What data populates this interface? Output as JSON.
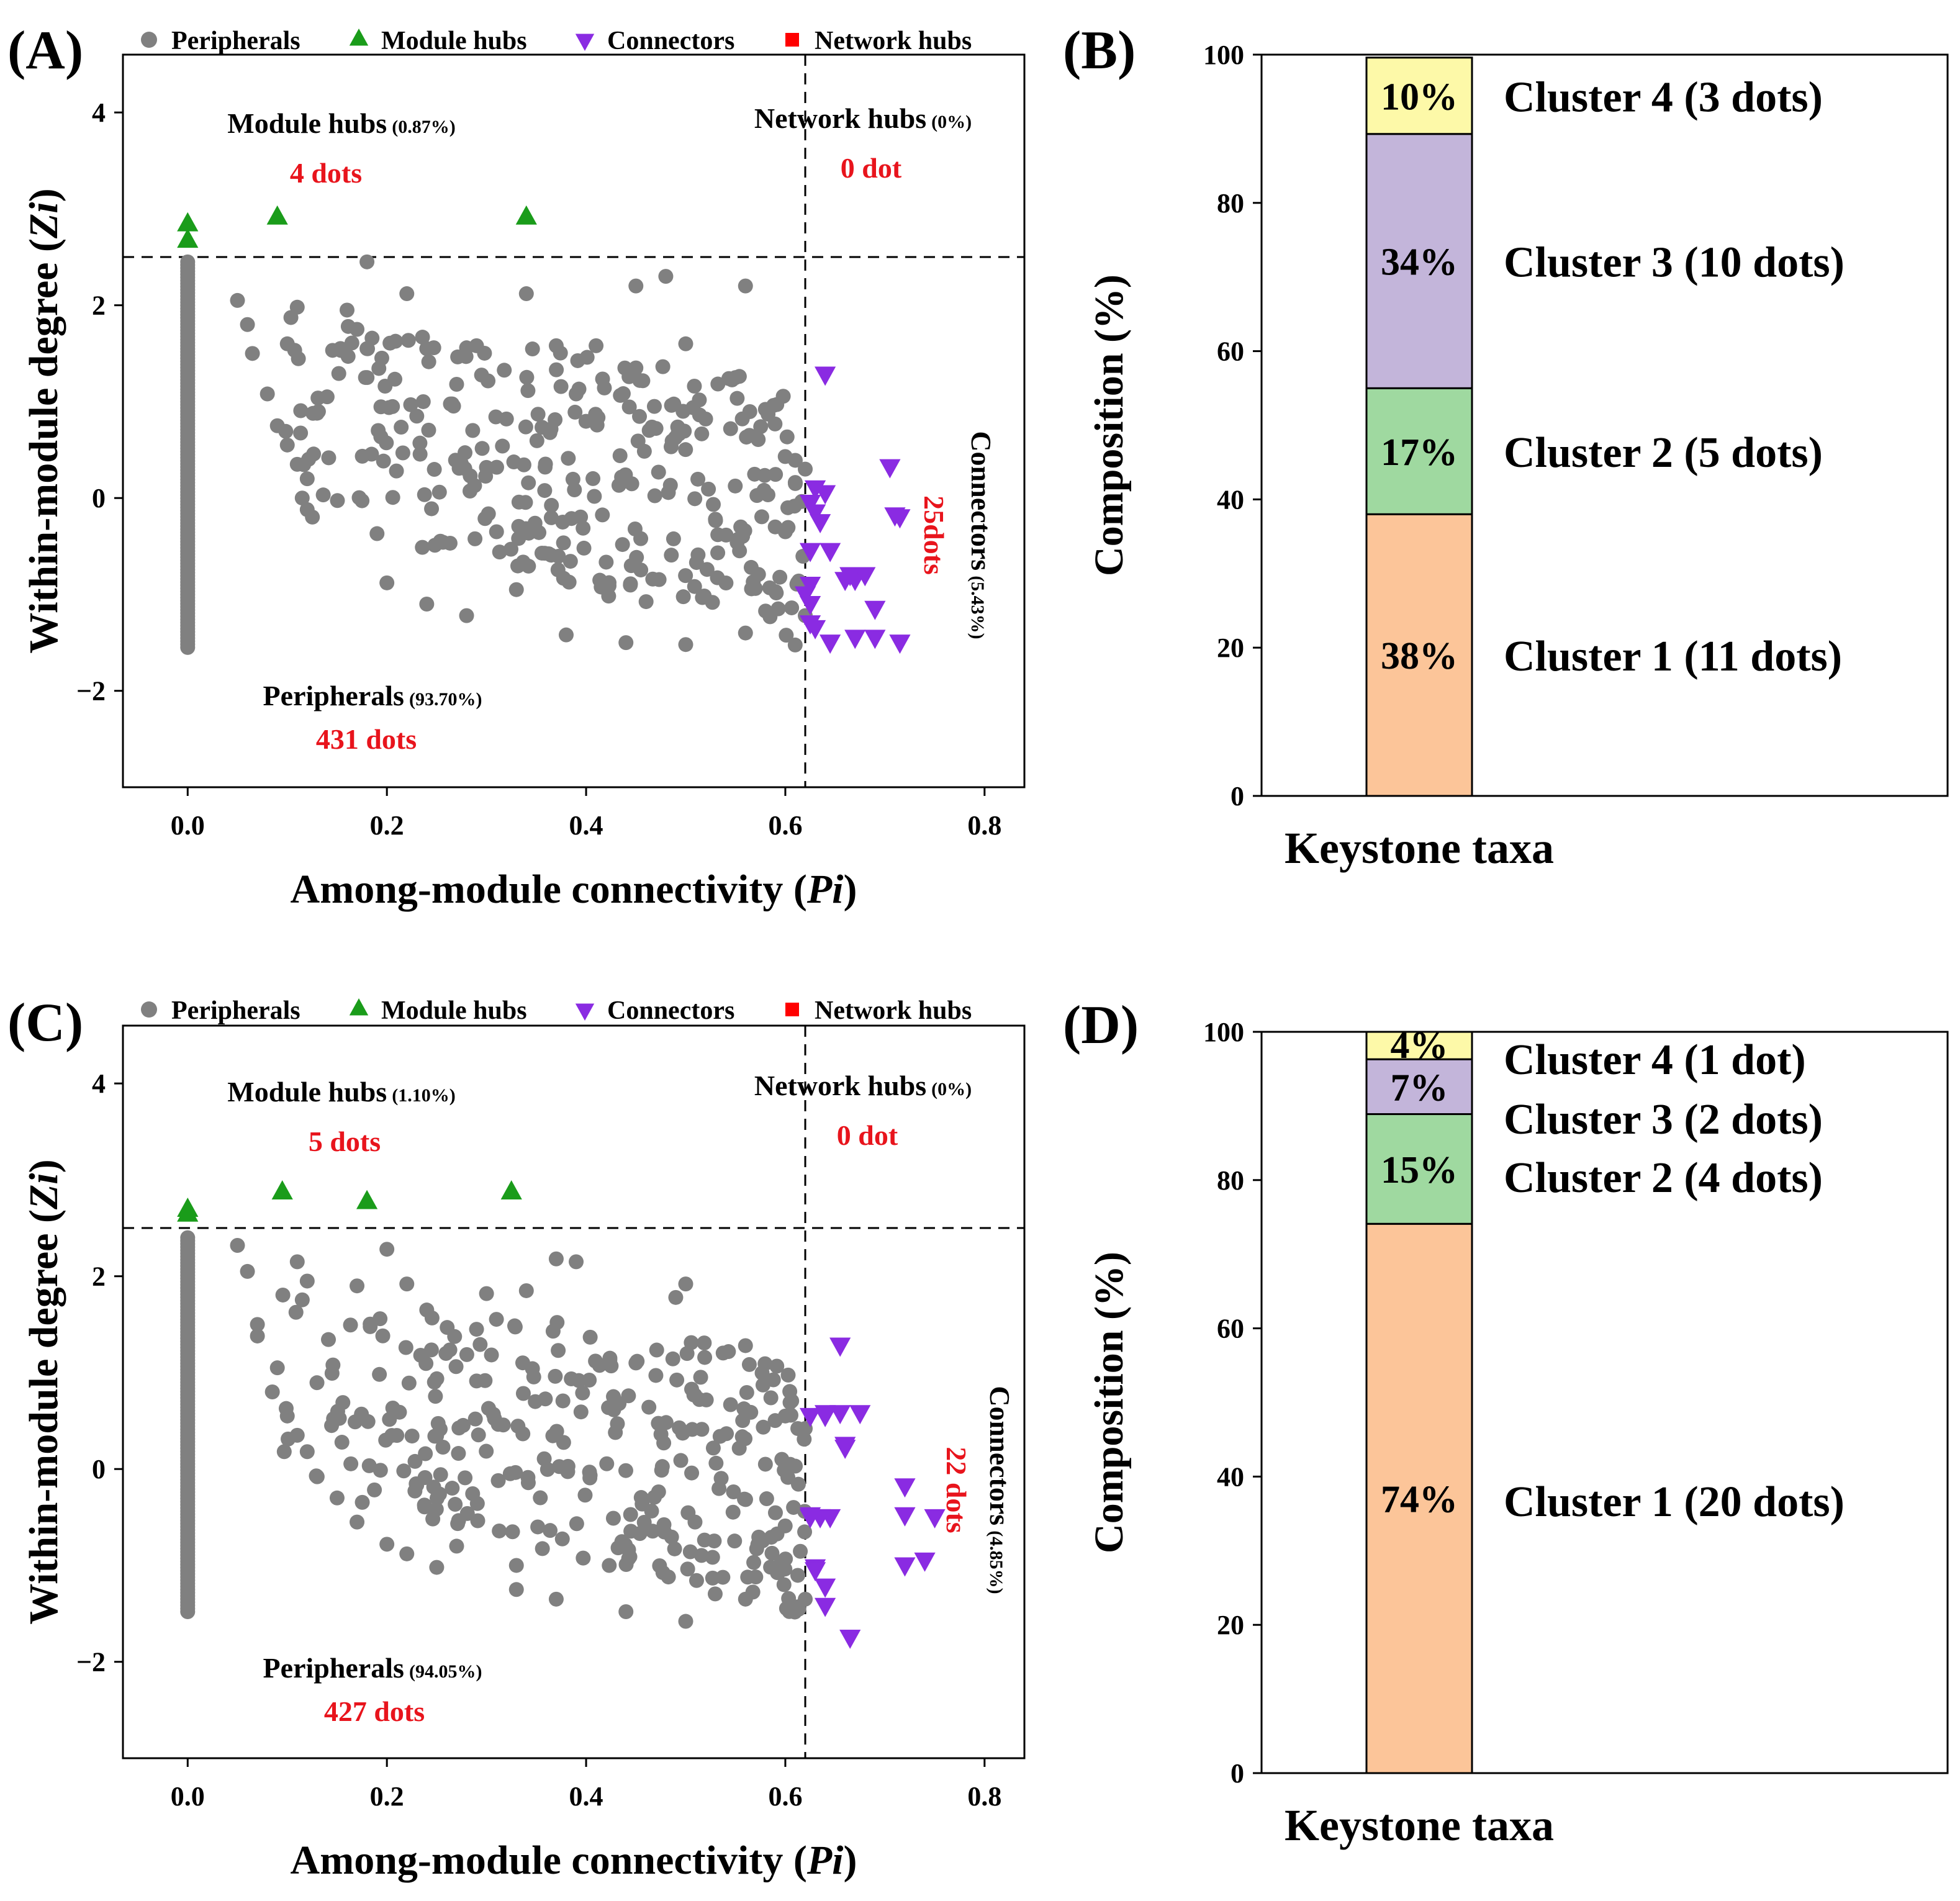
{
  "chart_data": [
    {
      "id": "A",
      "type": "scatter",
      "panel_label": "(A)",
      "legend": [
        {
          "label": "Peripherals",
          "color": "#808080",
          "marker": "circle"
        },
        {
          "label": "Module hubs",
          "color": "#1a9c1a",
          "marker": "triangle-up"
        },
        {
          "label": "Connectors",
          "color": "#8a2be2",
          "marker": "triangle-down"
        },
        {
          "label": "Network hubs",
          "color": "#ff0000",
          "marker": "square"
        }
      ],
      "xlabel_main": "Among-module connectivity (",
      "xlabel_italic": "Pi",
      "xlabel_end": ")",
      "ylabel_main": "Within-module degree (",
      "ylabel_italic": "Zi",
      "ylabel_end": ")",
      "xlim": [
        -0.065,
        0.84
      ],
      "ylim": [
        -3.0,
        4.6
      ],
      "xticks": [
        0.0,
        0.2,
        0.4,
        0.6,
        0.8
      ],
      "xtick_labels": [
        "0.0",
        "0.2",
        "0.4",
        "0.6",
        "0.8"
      ],
      "yticks": [
        -2,
        0,
        2,
        4
      ],
      "ytick_labels": [
        "−2",
        "0",
        "2",
        "4"
      ],
      "thresholds": {
        "pi": 0.62,
        "zi": 2.5
      },
      "annotations": {
        "module_hubs": {
          "title": "Module hubs",
          "pct": "(0.87%)",
          "count": "4 dots"
        },
        "network_hubs": {
          "title": "Network hubs",
          "pct": "(0%)",
          "count": "0 dot"
        },
        "connectors": {
          "title": "Connectors",
          "pct": "(5.43%)",
          "count": "25dots"
        },
        "peripherals": {
          "title": "Peripherals",
          "pct": "(93.70%)",
          "count": "431 dots"
        }
      },
      "module_hubs": [
        [
          0.0,
          2.85
        ],
        [
          0.0,
          2.68
        ],
        [
          0.09,
          2.92
        ],
        [
          0.34,
          2.92
        ]
      ],
      "network_hubs": [],
      "connectors": [
        [
          0.64,
          1.28
        ],
        [
          0.63,
          0.1
        ],
        [
          0.64,
          0.05
        ],
        [
          0.625,
          -0.05
        ],
        [
          0.63,
          -0.15
        ],
        [
          0.705,
          0.32
        ],
        [
          0.71,
          -0.18
        ],
        [
          0.715,
          -0.2
        ],
        [
          0.625,
          -0.55
        ],
        [
          0.645,
          -0.55
        ],
        [
          0.665,
          -0.8
        ],
        [
          0.67,
          -0.85
        ],
        [
          0.68,
          -0.8
        ],
        [
          0.625,
          -0.9
        ],
        [
          0.625,
          -1.1
        ],
        [
          0.69,
          -1.15
        ],
        [
          0.625,
          -1.3
        ],
        [
          0.63,
          -1.35
        ],
        [
          0.645,
          -1.5
        ],
        [
          0.67,
          -1.45
        ],
        [
          0.69,
          -1.45
        ],
        [
          0.715,
          -1.5
        ],
        [
          0.62,
          -1.0
        ],
        [
          0.635,
          -0.25
        ],
        [
          0.66,
          -0.85
        ]
      ],
      "peripherals_fixed": [
        [
          0.18,
          2.45
        ],
        [
          0.48,
          2.3
        ],
        [
          0.56,
          2.2
        ],
        [
          0.22,
          2.12
        ],
        [
          0.34,
          2.12
        ],
        [
          0.45,
          2.2
        ],
        [
          0.11,
          1.98
        ],
        [
          0.16,
          1.95
        ],
        [
          0.05,
          2.05
        ],
        [
          0.06,
          1.8
        ],
        [
          0.065,
          1.5
        ],
        [
          0.17,
          1.75
        ],
        [
          0.1,
          1.6
        ],
        [
          0.18,
          1.55
        ],
        [
          0.24,
          1.55
        ],
        [
          0.29,
          1.58
        ],
        [
          0.37,
          1.58
        ],
        [
          0.41,
          1.58
        ],
        [
          0.5,
          1.6
        ],
        [
          0.55,
          1.25
        ],
        [
          0.08,
          1.08
        ],
        [
          0.09,
          0.75
        ],
        [
          0.1,
          0.55
        ],
        [
          0.11,
          0.35
        ],
        [
          0.12,
          0.2
        ],
        [
          0.115,
          0.0
        ],
        [
          0.12,
          -0.12
        ],
        [
          0.2,
          -0.88
        ],
        [
          0.24,
          -1.1
        ],
        [
          0.28,
          -1.22
        ],
        [
          0.33,
          -0.95
        ],
        [
          0.38,
          -1.42
        ],
        [
          0.44,
          -1.5
        ],
        [
          0.5,
          -1.52
        ],
        [
          0.56,
          -1.4
        ],
        [
          0.62,
          -1.22
        ],
        [
          0.6,
          -0.35
        ],
        [
          0.61,
          0.15
        ],
        [
          0.62,
          0.3
        ],
        [
          0.58,
          0.92
        ],
        [
          0.52,
          0.82
        ],
        [
          0.45,
          1.35
        ],
        [
          0.39,
          1.08
        ],
        [
          0.32,
          0.82
        ],
        [
          0.27,
          1.18
        ],
        [
          0.23,
          0.85
        ],
        [
          0.14,
          1.05
        ],
        [
          0.13,
          0.88
        ]
      ],
      "peripherals_x0_count": 125,
      "peripherals_x0_range": [
        -1.55,
        2.45
      ],
      "peripherals_cloud_count": 300,
      "peripherals_cloud_seed": 7
    },
    {
      "id": "B",
      "type": "bar",
      "panel_label": "(B)",
      "ylabel": "Composition (%)",
      "xlabel": "Keystone taxa",
      "ylim": [
        0,
        100
      ],
      "yticks": [
        0,
        20,
        40,
        60,
        80,
        100
      ],
      "ytick_labels": [
        "0",
        "20",
        "40",
        "60",
        "80",
        "100"
      ],
      "segments": [
        {
          "pct_value": 38,
          "label": "38%",
          "cluster": "Cluster 1 (11 dots)",
          "color": "#fcc599"
        },
        {
          "pct_value": 17,
          "label": "17%",
          "cluster": "Cluster 2 (5 dots)",
          "color": "#9fd9a0"
        },
        {
          "pct_value": 34.3,
          "label": "34%",
          "cluster": "Cluster 3 (10 dots)",
          "color": "#c3b5da"
        },
        {
          "pct_value": 10.3,
          "label": "10%",
          "cluster": "Cluster 4 (3 dots)",
          "color": "#fdf9a8"
        }
      ]
    },
    {
      "id": "C",
      "type": "scatter",
      "panel_label": "(C)",
      "legend": [
        {
          "label": "Peripherals",
          "color": "#808080",
          "marker": "circle"
        },
        {
          "label": "Module hubs",
          "color": "#1a9c1a",
          "marker": "triangle-up"
        },
        {
          "label": "Connectors",
          "color": "#8a2be2",
          "marker": "triangle-down"
        },
        {
          "label": "Network hubs",
          "color": "#ff0000",
          "marker": "square"
        }
      ],
      "xlabel_main": "Among-module connectivity (",
      "xlabel_italic": "Pi",
      "xlabel_end": ")",
      "ylabel_main": "Within-module degree (",
      "ylabel_italic": "Zi",
      "ylabel_end": ")",
      "xlim": [
        -0.065,
        0.84
      ],
      "ylim": [
        -3.0,
        4.6
      ],
      "xticks": [
        0.0,
        0.2,
        0.4,
        0.6,
        0.8
      ],
      "xtick_labels": [
        "0.0",
        "0.2",
        "0.4",
        "0.6",
        "0.8"
      ],
      "yticks": [
        -2,
        0,
        2,
        4
      ],
      "ytick_labels": [
        "−2",
        "0",
        "2",
        "4"
      ],
      "thresholds": {
        "pi": 0.62,
        "zi": 2.5
      },
      "annotations": {
        "module_hubs": {
          "title": "Module hubs",
          "pct": "(1.10%)",
          "count": "5 dots"
        },
        "network_hubs": {
          "title": "Network hubs",
          "pct": "(0%)",
          "count": "0 dot"
        },
        "connectors": {
          "title": "Connectors",
          "pct": "(4.85%)",
          "count": "22 dots"
        },
        "peripherals": {
          "title": "Peripherals",
          "pct": "(94.05%)",
          "count": "427 dots"
        }
      },
      "module_hubs": [
        [
          0.0,
          2.7
        ],
        [
          0.095,
          2.88
        ],
        [
          0.18,
          2.78
        ],
        [
          0.325,
          2.88
        ],
        [
          0.0,
          2.65
        ]
      ],
      "network_hubs": [],
      "connectors": [
        [
          0.655,
          1.28
        ],
        [
          0.625,
          0.55
        ],
        [
          0.64,
          0.58
        ],
        [
          0.655,
          0.58
        ],
        [
          0.675,
          0.58
        ],
        [
          0.66,
          0.22
        ],
        [
          0.72,
          -0.18
        ],
        [
          0.625,
          -0.48
        ],
        [
          0.635,
          -0.5
        ],
        [
          0.645,
          -0.5
        ],
        [
          0.72,
          -0.48
        ],
        [
          0.75,
          -0.5
        ],
        [
          0.63,
          -1.02
        ],
        [
          0.64,
          -1.22
        ],
        [
          0.72,
          -1.0
        ],
        [
          0.74,
          -0.95
        ],
        [
          0.64,
          -1.42
        ],
        [
          0.665,
          -1.75
        ],
        [
          0.625,
          -0.5
        ],
        [
          0.63,
          -1.05
        ],
        [
          0.66,
          0.25
        ],
        [
          0.64,
          0.55
        ]
      ],
      "peripherals_fixed": [
        [
          0.2,
          2.28
        ],
        [
          0.05,
          2.32
        ],
        [
          0.06,
          2.05
        ],
        [
          0.11,
          2.15
        ],
        [
          0.12,
          1.95
        ],
        [
          0.17,
          1.9
        ],
        [
          0.22,
          1.92
        ],
        [
          0.3,
          1.82
        ],
        [
          0.34,
          1.85
        ],
        [
          0.37,
          2.18
        ],
        [
          0.39,
          2.15
        ],
        [
          0.49,
          1.78
        ],
        [
          0.5,
          1.92
        ],
        [
          0.56,
          1.28
        ],
        [
          0.07,
          1.5
        ],
        [
          0.07,
          1.38
        ],
        [
          0.09,
          1.05
        ],
        [
          0.085,
          0.8
        ],
        [
          0.1,
          0.55
        ],
        [
          0.11,
          0.35
        ],
        [
          0.12,
          0.18
        ],
        [
          0.13,
          -0.08
        ],
        [
          0.15,
          -0.3
        ],
        [
          0.17,
          -0.55
        ],
        [
          0.2,
          -0.78
        ],
        [
          0.22,
          -0.88
        ],
        [
          0.25,
          -1.02
        ],
        [
          0.27,
          -0.8
        ],
        [
          0.33,
          -1.0
        ],
        [
          0.33,
          -1.25
        ],
        [
          0.37,
          -1.35
        ],
        [
          0.44,
          -1.48
        ],
        [
          0.5,
          -1.58
        ],
        [
          0.56,
          -1.35
        ],
        [
          0.62,
          -1.35
        ],
        [
          0.6,
          0.55
        ],
        [
          0.62,
          0.42
        ],
        [
          0.58,
          0.05
        ],
        [
          0.45,
          1.1
        ],
        [
          0.29,
          1.45
        ],
        [
          0.24,
          1.65
        ]
      ],
      "peripherals_x0_count": 120,
      "peripherals_x0_range": [
        -1.48,
        2.4
      ],
      "peripherals_cloud_count": 300,
      "peripherals_cloud_seed": 13
    },
    {
      "id": "D",
      "type": "bar",
      "panel_label": "(D)",
      "ylabel": "Composition (%)",
      "xlabel": "Keystone taxa",
      "ylim": [
        0,
        100
      ],
      "yticks": [
        0,
        20,
        40,
        60,
        80,
        100
      ],
      "ytick_labels": [
        "0",
        "20",
        "40",
        "60",
        "80",
        "100"
      ],
      "segments": [
        {
          "pct_value": 74.1,
          "label": "74%",
          "cluster": "Cluster 1 (20 dots)",
          "color": "#fcc599"
        },
        {
          "pct_value": 14.8,
          "label": "15%",
          "cluster": "Cluster 2 (4 dots)",
          "color": "#9fd9a0"
        },
        {
          "pct_value": 7.4,
          "label": "7%",
          "cluster": "Cluster 3 (2 dots)",
          "color": "#c3b5da"
        },
        {
          "pct_value": 3.7,
          "label": "4%",
          "cluster": "Cluster 4 (1 dot)",
          "color": "#fdf9a8"
        }
      ]
    }
  ]
}
